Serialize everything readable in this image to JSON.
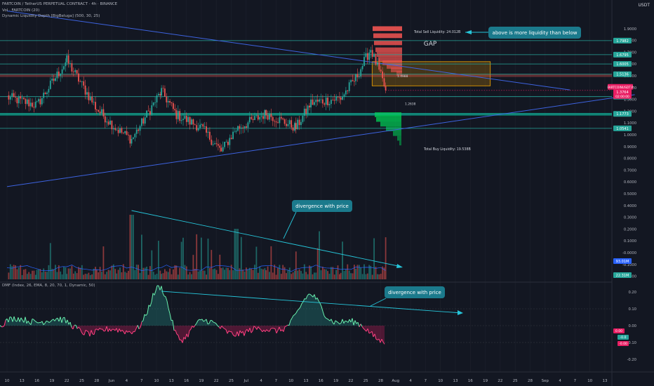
{
  "header": {
    "symbol_line": "FARTCOIN / TetherUS PERPETUAL CONTRACT · 4h · BINANCE",
    "vol_line": "Vol · FARTCOIN (20)",
    "indicator_line": "Dynamic Liquidity Depth [BigBeluga] (500, 30, 25)",
    "currency": "USDT"
  },
  "dmf_header": "DMF (Index, 26, EMA, 8, 20, 70, 1, Dynamic, 50)",
  "price_axis": [
    "1.9000",
    "1.8000",
    "1.7000",
    "1.6000",
    "1.5000",
    "1.4000",
    "1.3000",
    "1.2000",
    "1.1000",
    "1.0000",
    "0.9000",
    "0.8000",
    "0.7000",
    "0.6000",
    "0.5000",
    "0.4000",
    "0.3000",
    "0.2000",
    "0.1000",
    "-0.0000",
    "-0.1000",
    "-0.2000"
  ],
  "price_levels": [
    {
      "price": 1.7982,
      "label": "1.7982",
      "color": "#26a69a"
    },
    {
      "price": 1.6795,
      "label": "1.6795",
      "color": "#26a69a"
    },
    {
      "price": 1.6005,
      "label": "1.6005",
      "color": "#26a69a"
    },
    {
      "price": 1.5136,
      "label": "1.5136",
      "color": "#26a69a"
    },
    {
      "price": 1.3234,
      "label": "1.3234",
      "color": "#26a69a"
    },
    {
      "price": 1.1773,
      "label": "1.1773",
      "color": "#26a69a"
    },
    {
      "price": 1.0541,
      "label": "1.0541",
      "color": "#26a69a"
    }
  ],
  "current_price": {
    "symbol": "FARTCOINUSDT.P",
    "value": "1.3764",
    "countdown": "02:00:00",
    "color": "#e91e63"
  },
  "liquidity": {
    "sell_label": "Total Sell Liquidity: 24.012B",
    "buy_label": "Total Buy Liquidity: 19.538B",
    "sell_level": "1.4988",
    "buy_level": "1.2638"
  },
  "annotations": {
    "liquidity_note": "above is more liquidity than below",
    "gap": "GAP",
    "divergence_1": "divergence with price",
    "divergence_2": "divergence with price"
  },
  "volume_axis": {
    "labels": [
      "93.01M",
      "22.31M"
    ]
  },
  "dmf_axis": {
    "ticks": [
      "0.20",
      "0.10",
      "0.00",
      "-0.10",
      "-0.20"
    ],
    "badges": [
      "0.00",
      "-0.0",
      "-0.00"
    ]
  },
  "time_axis": [
    "10",
    "13",
    "16",
    "19",
    "22",
    "25",
    "28",
    "Jun",
    "4",
    "7",
    "10",
    "13",
    "16",
    "19",
    "22",
    "25",
    "Jul",
    "4",
    "7",
    "10",
    "13",
    "16",
    "19",
    "22",
    "25",
    "28",
    "Aug",
    "4",
    "7",
    "10",
    "13",
    "16",
    "19",
    "22",
    "25",
    "28",
    "Sep",
    "4",
    "7",
    "10",
    "13"
  ],
  "chart_data": {
    "type": "candlestick",
    "title": "FARTCOIN / TetherUS PERPETUAL CONTRACT · 4h · BINANCE",
    "price_key_points": [
      {
        "date": "May 10",
        "price": 1.32
      },
      {
        "date": "May 16",
        "price": 1.25
      },
      {
        "date": "May 22",
        "price": 1.63
      },
      {
        "date": "May 28",
        "price": 1.22
      },
      {
        "date": "Jun 1",
        "price": 1.05
      },
      {
        "date": "Jun 4",
        "price": 0.96
      },
      {
        "date": "Jun 10",
        "price": 1.37
      },
      {
        "date": "Jun 13",
        "price": 1.17
      },
      {
        "date": "Jun 18",
        "price": 1.06
      },
      {
        "date": "Jun 22",
        "price": 0.86
      },
      {
        "date": "Jun 25",
        "price": 1.05
      },
      {
        "date": "Jul 1",
        "price": 1.18
      },
      {
        "date": "Jul 7",
        "price": 1.06
      },
      {
        "date": "Jul 10",
        "price": 1.27
      },
      {
        "date": "Jul 16",
        "price": 1.31
      },
      {
        "date": "Jul 19",
        "price": 1.48
      },
      {
        "date": "Jul 22",
        "price": 1.73
      },
      {
        "date": "Jul 25",
        "price": 1.38
      }
    ],
    "last_price": 1.3764,
    "ylim": [
      -0.2,
      1.9
    ],
    "trendlines": [
      {
        "name": "descending",
        "from": {
          "date": "May 10",
          "price": 2.05
        },
        "to": {
          "date": "Aug 31",
          "price": 1.38
        }
      },
      {
        "name": "ascending",
        "from": {
          "date": "May 10",
          "price": 0.56
        },
        "to": {
          "date": "Sep 13",
          "price": 1.34
        }
      }
    ],
    "gap_zone": {
      "from": "Jul 22",
      "to": "Aug 15",
      "top": 1.62,
      "bottom": 1.415
    },
    "dmf_key_points": [
      {
        "date": "Jun 10",
        "value": 0.22
      },
      {
        "date": "Jun 13",
        "value": -0.15
      },
      {
        "date": "Jul 10",
        "value": 0.13
      },
      {
        "date": "Jul 25",
        "value": -0.04
      }
    ],
    "dmf_ylim": [
      -0.25,
      0.25
    ]
  }
}
